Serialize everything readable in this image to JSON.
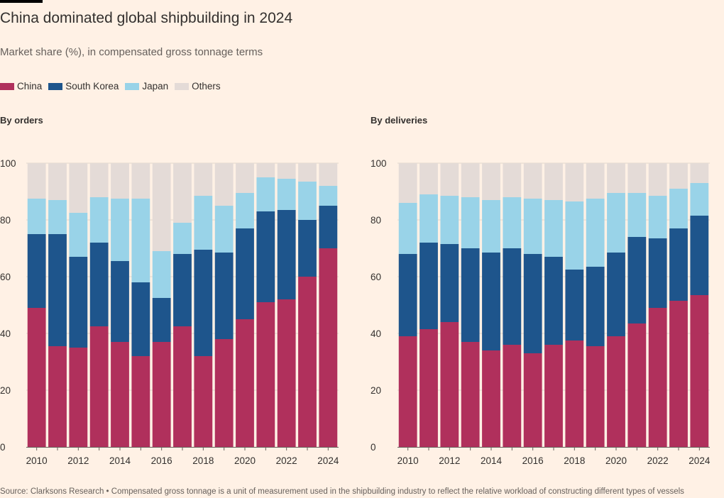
{
  "title": "China dominated global shipbuilding in 2024",
  "subtitle": "Market share (%), in compensated gross tonnage terms",
  "legend": [
    {
      "name": "China",
      "color": "#b0305c"
    },
    {
      "name": "South Korea",
      "color": "#1e558c"
    },
    {
      "name": "Japan",
      "color": "#99d3e8"
    },
    {
      "name": "Others",
      "color": "#e4dbd7"
    }
  ],
  "source": "Source: Clarksons Research • Compensated gross tonnage is a unit of measurement used in the shipbuilding industry to reflect the relative workload of constructing different types of vessels",
  "chart_data": [
    {
      "type": "bar",
      "stacked": true,
      "title": "By orders",
      "x": [
        2010,
        2011,
        2012,
        2013,
        2014,
        2015,
        2016,
        2017,
        2018,
        2019,
        2020,
        2021,
        2022,
        2023,
        2024
      ],
      "x_tick_labels": [
        "2010",
        "2012",
        "2014",
        "2016",
        "2018",
        "2020",
        "2022",
        "2024"
      ],
      "y_ticks": [
        0,
        20,
        40,
        60,
        80,
        100
      ],
      "ylim": [
        0,
        100
      ],
      "grid": true,
      "series": [
        {
          "name": "China",
          "color": "#b0305c",
          "values": [
            49,
            35.5,
            35,
            42.5,
            37,
            32,
            37,
            42.5,
            32,
            38,
            45,
            51,
            52,
            60,
            70
          ]
        },
        {
          "name": "South Korea",
          "color": "#1e558c",
          "values": [
            26,
            39.5,
            32,
            29.5,
            28.5,
            26,
            15.5,
            25.5,
            37.5,
            30.5,
            32,
            32,
            31.5,
            20,
            15
          ]
        },
        {
          "name": "Japan",
          "color": "#99d3e8",
          "values": [
            12.5,
            12,
            15.5,
            16,
            22,
            29.5,
            16.5,
            11,
            19,
            16.5,
            12.5,
            12,
            11,
            13.5,
            7
          ]
        },
        {
          "name": "Others",
          "color": "#e4dbd7",
          "values": [
            12.5,
            13,
            17.5,
            12,
            12.5,
            12.5,
            31,
            21,
            11.5,
            15,
            10.5,
            5,
            5.5,
            6.5,
            8
          ]
        }
      ]
    },
    {
      "type": "bar",
      "stacked": true,
      "title": "By deliveries",
      "x": [
        2010,
        2011,
        2012,
        2013,
        2014,
        2015,
        2016,
        2017,
        2018,
        2019,
        2020,
        2021,
        2022,
        2023,
        2024
      ],
      "x_tick_labels": [
        "2010",
        "2012",
        "2014",
        "2016",
        "2018",
        "2020",
        "2022",
        "2024"
      ],
      "y_ticks": [
        0,
        20,
        40,
        60,
        80,
        100
      ],
      "ylim": [
        0,
        100
      ],
      "grid": true,
      "series": [
        {
          "name": "China",
          "color": "#b0305c",
          "values": [
            39,
            41.5,
            44,
            37,
            34,
            36,
            33,
            36,
            37.5,
            35.5,
            39,
            43.5,
            49,
            51.5,
            53.5
          ]
        },
        {
          "name": "South Korea",
          "color": "#1e558c",
          "values": [
            29,
            30.5,
            27.5,
            33,
            34.5,
            34,
            35,
            31,
            25,
            28,
            29.5,
            30.5,
            24.5,
            25.5,
            28
          ]
        },
        {
          "name": "Japan",
          "color": "#99d3e8",
          "values": [
            18,
            17,
            17,
            18,
            18.5,
            18,
            19.5,
            20,
            24,
            24,
            21,
            15.5,
            15,
            14,
            11.5
          ]
        },
        {
          "name": "Others",
          "color": "#e4dbd7",
          "values": [
            14,
            11,
            11.5,
            12,
            13,
            12,
            12.5,
            13,
            13.5,
            12.5,
            10.5,
            10.5,
            11.5,
            9,
            7
          ]
        }
      ]
    }
  ]
}
